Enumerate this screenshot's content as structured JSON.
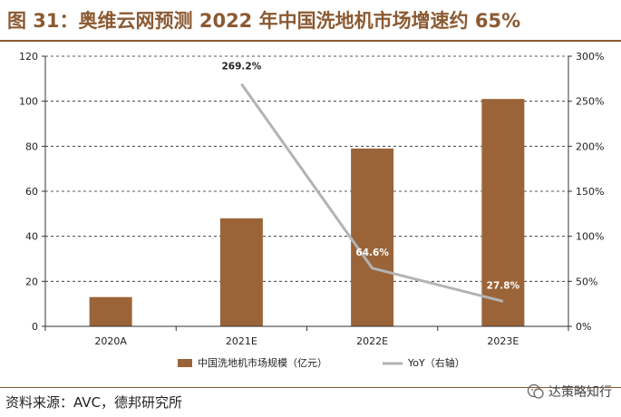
{
  "header": {
    "title": "图 31：奥维云网预测 2022 年中国洗地机市场增速约 65%"
  },
  "footer": {
    "source": "资料来源：AVC，德邦研究所",
    "watermark": "达策略知行"
  },
  "colors": {
    "bar": "#9b6438",
    "line": "#b3b3b3",
    "accent": "#8b5a32"
  },
  "chart_data": {
    "type": "bar",
    "title": "",
    "categories": [
      "2020A",
      "2021E",
      "2022E",
      "2023E"
    ],
    "series": [
      {
        "name": "中国洗地机市场规模（亿元）",
        "type": "bar",
        "axis": "left",
        "values": [
          13,
          48,
          79,
          101
        ]
      },
      {
        "name": "YoY（右轴）",
        "type": "line",
        "axis": "right",
        "values": [
          null,
          269.2,
          64.6,
          27.8
        ],
        "labels": [
          "",
          "269.2%",
          "64.6%",
          "27.8%"
        ]
      }
    ],
    "yleft": {
      "ylim": [
        0,
        120
      ],
      "ticks": [
        "0",
        "20",
        "40",
        "60",
        "80",
        "100",
        "120"
      ]
    },
    "yright": {
      "ylim": [
        0,
        300
      ],
      "ticks": [
        "0%",
        "50%",
        "100%",
        "150%",
        "200%",
        "250%",
        "300%"
      ]
    },
    "grid": true,
    "legend": "bottom"
  }
}
